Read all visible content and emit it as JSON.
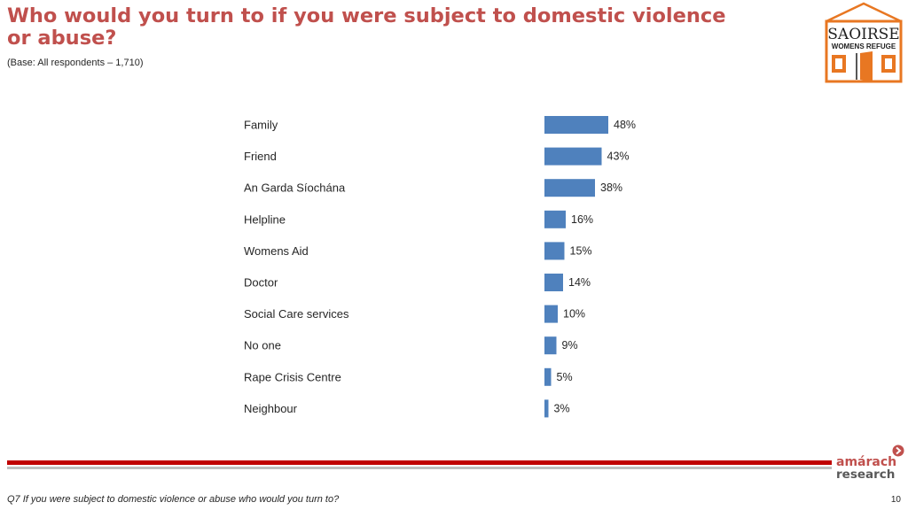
{
  "header": {
    "title_line1": "Who would you turn to if you were subject to domestic violence",
    "title_line2": "or abuse?",
    "base_note": "(Base: All respondents – 1,710)"
  },
  "logo": {
    "brand_top": "SAOIRSE",
    "brand_bottom": "WOMENS REFUGE",
    "colors": {
      "frame": "#e87722",
      "text": "#1f1f1f"
    }
  },
  "chart_data": {
    "type": "bar",
    "orientation": "horizontal",
    "categories": [
      "Family",
      "Friend",
      "An Garda Síochána",
      "Helpline",
      "Womens Aid",
      "Doctor",
      "Social Care services",
      "No one",
      "Rape Crisis Centre",
      "Neighbour"
    ],
    "values": [
      48,
      43,
      38,
      16,
      15,
      14,
      10,
      9,
      5,
      3
    ],
    "value_labels": [
      "48%",
      "43%",
      "38%",
      "16%",
      "15%",
      "14%",
      "10%",
      "9%",
      "5%",
      "3%"
    ],
    "unit": "%",
    "bar_color": "#4f81bd",
    "xlim": [
      0,
      100
    ],
    "grid": false,
    "legend": "none"
  },
  "footer": {
    "question": "Q7 If you were subject to domestic violence or abuse who would you turn to?",
    "page_number": "10",
    "brand_line1": "amárach",
    "brand_line2": "research",
    "brand_colors": {
      "primary": "#c0504d",
      "secondary": "#595959"
    }
  }
}
